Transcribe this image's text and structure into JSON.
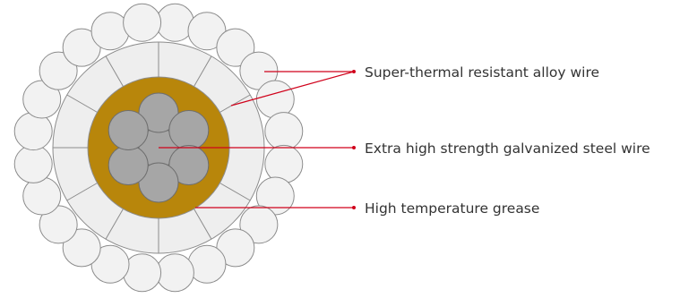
{
  "colors": {
    "outer_wire_fill": "#f2f2f2",
    "outer_wire_stroke": "#8c8c8c",
    "segment_fill": "#eeeeee",
    "segment_stroke": "#8c8c8c",
    "grease_fill": "#b8860b",
    "core_fill": "#a6a6a6",
    "core_stroke": "#6e6e6e",
    "leader_line": "#d0021b"
  },
  "labels": {
    "alloy_wire": "Super-thermal resistant alloy wire",
    "steel_wire": "Extra high strength galvanized steel wire",
    "grease": "High temperature grease"
  }
}
